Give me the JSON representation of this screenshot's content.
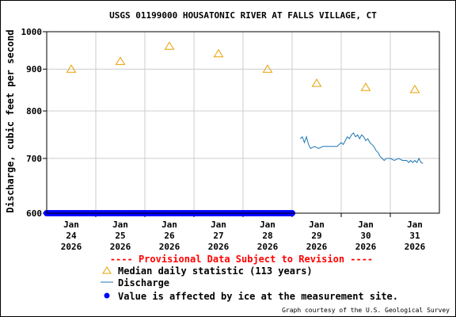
{
  "chart_data": {
    "type": "line",
    "title": "USGS 01199000 HOUSATONIC RIVER AT FALLS VILLAGE, CT",
    "ylabel": "Discharge, cubic feet per second",
    "xlabel": "",
    "ylim": [
      600,
      1000
    ],
    "y_scale": "log",
    "y_ticks": [
      600,
      700,
      800,
      900,
      1000
    ],
    "y_tick_labels": [
      "600",
      "700",
      "800",
      "900",
      "1000"
    ],
    "x_range": [
      "2026-01-24T00:00",
      "2026-02-01T00:00"
    ],
    "x_ticks": [
      {
        "line1": "Jan",
        "line2": "24",
        "line3": "2026",
        "at": "2026-01-24T12:00"
      },
      {
        "line1": "Jan",
        "line2": "25",
        "line3": "2026",
        "at": "2026-01-25T12:00"
      },
      {
        "line1": "Jan",
        "line2": "26",
        "line3": "2026",
        "at": "2026-01-26T12:00"
      },
      {
        "line1": "Jan",
        "line2": "27",
        "line3": "2026",
        "at": "2026-01-27T12:00"
      },
      {
        "line1": "Jan",
        "line2": "28",
        "line3": "2026",
        "at": "2026-01-28T12:00"
      },
      {
        "line1": "Jan",
        "line2": "29",
        "line3": "2026",
        "at": "2026-01-29T12:00"
      },
      {
        "line1": "Jan",
        "line2": "30",
        "line3": "2026",
        "at": "2026-01-30T12:00"
      },
      {
        "line1": "Jan",
        "line2": "31",
        "line3": "2026",
        "at": "2026-01-31T12:00"
      }
    ],
    "grid": true,
    "series": [
      {
        "name": "Median daily statistic (113 years)",
        "marker": "triangle",
        "color": "#e8a000",
        "points": [
          {
            "x": "2026-01-24T12:00",
            "y": 900
          },
          {
            "x": "2026-01-25T12:00",
            "y": 920
          },
          {
            "x": "2026-01-26T12:00",
            "y": 960
          },
          {
            "x": "2026-01-27T12:00",
            "y": 940
          },
          {
            "x": "2026-01-28T12:00",
            "y": 900
          },
          {
            "x": "2026-01-29T12:00",
            "y": 865
          },
          {
            "x": "2026-01-30T12:00",
            "y": 855
          },
          {
            "x": "2026-01-31T12:00",
            "y": 850
          }
        ]
      },
      {
        "name": "Discharge",
        "color": "#1f77b4",
        "points": [
          {
            "x": "2026-01-29T04:00",
            "y": 740
          },
          {
            "x": "2026-01-29T05:00",
            "y": 744
          },
          {
            "x": "2026-01-29T06:00",
            "y": 732
          },
          {
            "x": "2026-01-29T07:00",
            "y": 744
          },
          {
            "x": "2026-01-29T08:00",
            "y": 728
          },
          {
            "x": "2026-01-29T09:00",
            "y": 720
          },
          {
            "x": "2026-01-29T11:00",
            "y": 724
          },
          {
            "x": "2026-01-29T13:00",
            "y": 720
          },
          {
            "x": "2026-01-29T15:00",
            "y": 724
          },
          {
            "x": "2026-01-29T18:00",
            "y": 724
          },
          {
            "x": "2026-01-29T22:00",
            "y": 724
          },
          {
            "x": "2026-01-30T00:00",
            "y": 732
          },
          {
            "x": "2026-01-30T01:00",
            "y": 728
          },
          {
            "x": "2026-01-30T02:00",
            "y": 736
          },
          {
            "x": "2026-01-30T03:00",
            "y": 744
          },
          {
            "x": "2026-01-30T04:00",
            "y": 740
          },
          {
            "x": "2026-01-30T05:00",
            "y": 748
          },
          {
            "x": "2026-01-30T06:00",
            "y": 752
          },
          {
            "x": "2026-01-30T07:00",
            "y": 744
          },
          {
            "x": "2026-01-30T08:00",
            "y": 748
          },
          {
            "x": "2026-01-30T09:00",
            "y": 740
          },
          {
            "x": "2026-01-30T10:00",
            "y": 748
          },
          {
            "x": "2026-01-30T11:00",
            "y": 744
          },
          {
            "x": "2026-01-30T12:00",
            "y": 736
          },
          {
            "x": "2026-01-30T13:00",
            "y": 740
          },
          {
            "x": "2026-01-30T14:00",
            "y": 732
          },
          {
            "x": "2026-01-30T15:00",
            "y": 728
          },
          {
            "x": "2026-01-30T16:00",
            "y": 724
          },
          {
            "x": "2026-01-30T17:00",
            "y": 716
          },
          {
            "x": "2026-01-30T18:00",
            "y": 712
          },
          {
            "x": "2026-01-30T19:00",
            "y": 704
          },
          {
            "x": "2026-01-30T20:00",
            "y": 700
          },
          {
            "x": "2026-01-30T21:00",
            "y": 696
          },
          {
            "x": "2026-01-30T22:00",
            "y": 700
          },
          {
            "x": "2026-01-31T00:00",
            "y": 700
          },
          {
            "x": "2026-01-31T02:00",
            "y": 696
          },
          {
            "x": "2026-01-31T04:00",
            "y": 700
          },
          {
            "x": "2026-01-31T06:00",
            "y": 696
          },
          {
            "x": "2026-01-31T08:00",
            "y": 696
          },
          {
            "x": "2026-01-31T09:00",
            "y": 692
          },
          {
            "x": "2026-01-31T10:00",
            "y": 696
          },
          {
            "x": "2026-01-31T11:00",
            "y": 692
          },
          {
            "x": "2026-01-31T12:00",
            "y": 696
          },
          {
            "x": "2026-01-31T13:00",
            "y": 692
          },
          {
            "x": "2026-01-31T14:00",
            "y": 700
          },
          {
            "x": "2026-01-31T15:00",
            "y": 692
          },
          {
            "x": "2026-01-31T16:00",
            "y": 690
          }
        ]
      },
      {
        "name": "Value is affected by ice at the measurement site.",
        "marker": "dot",
        "color": "#0000ff",
        "y": 600,
        "x_start": "2026-01-24T00:00",
        "x_end": "2026-01-29T00:00",
        "step_hours": 1
      }
    ],
    "annotations": {
      "provisional": "---- Provisional Data Subject to Revision ----",
      "provisional_color": "#ff0000",
      "credit": "Graph courtesy of the U.S. Geological Survey"
    }
  }
}
